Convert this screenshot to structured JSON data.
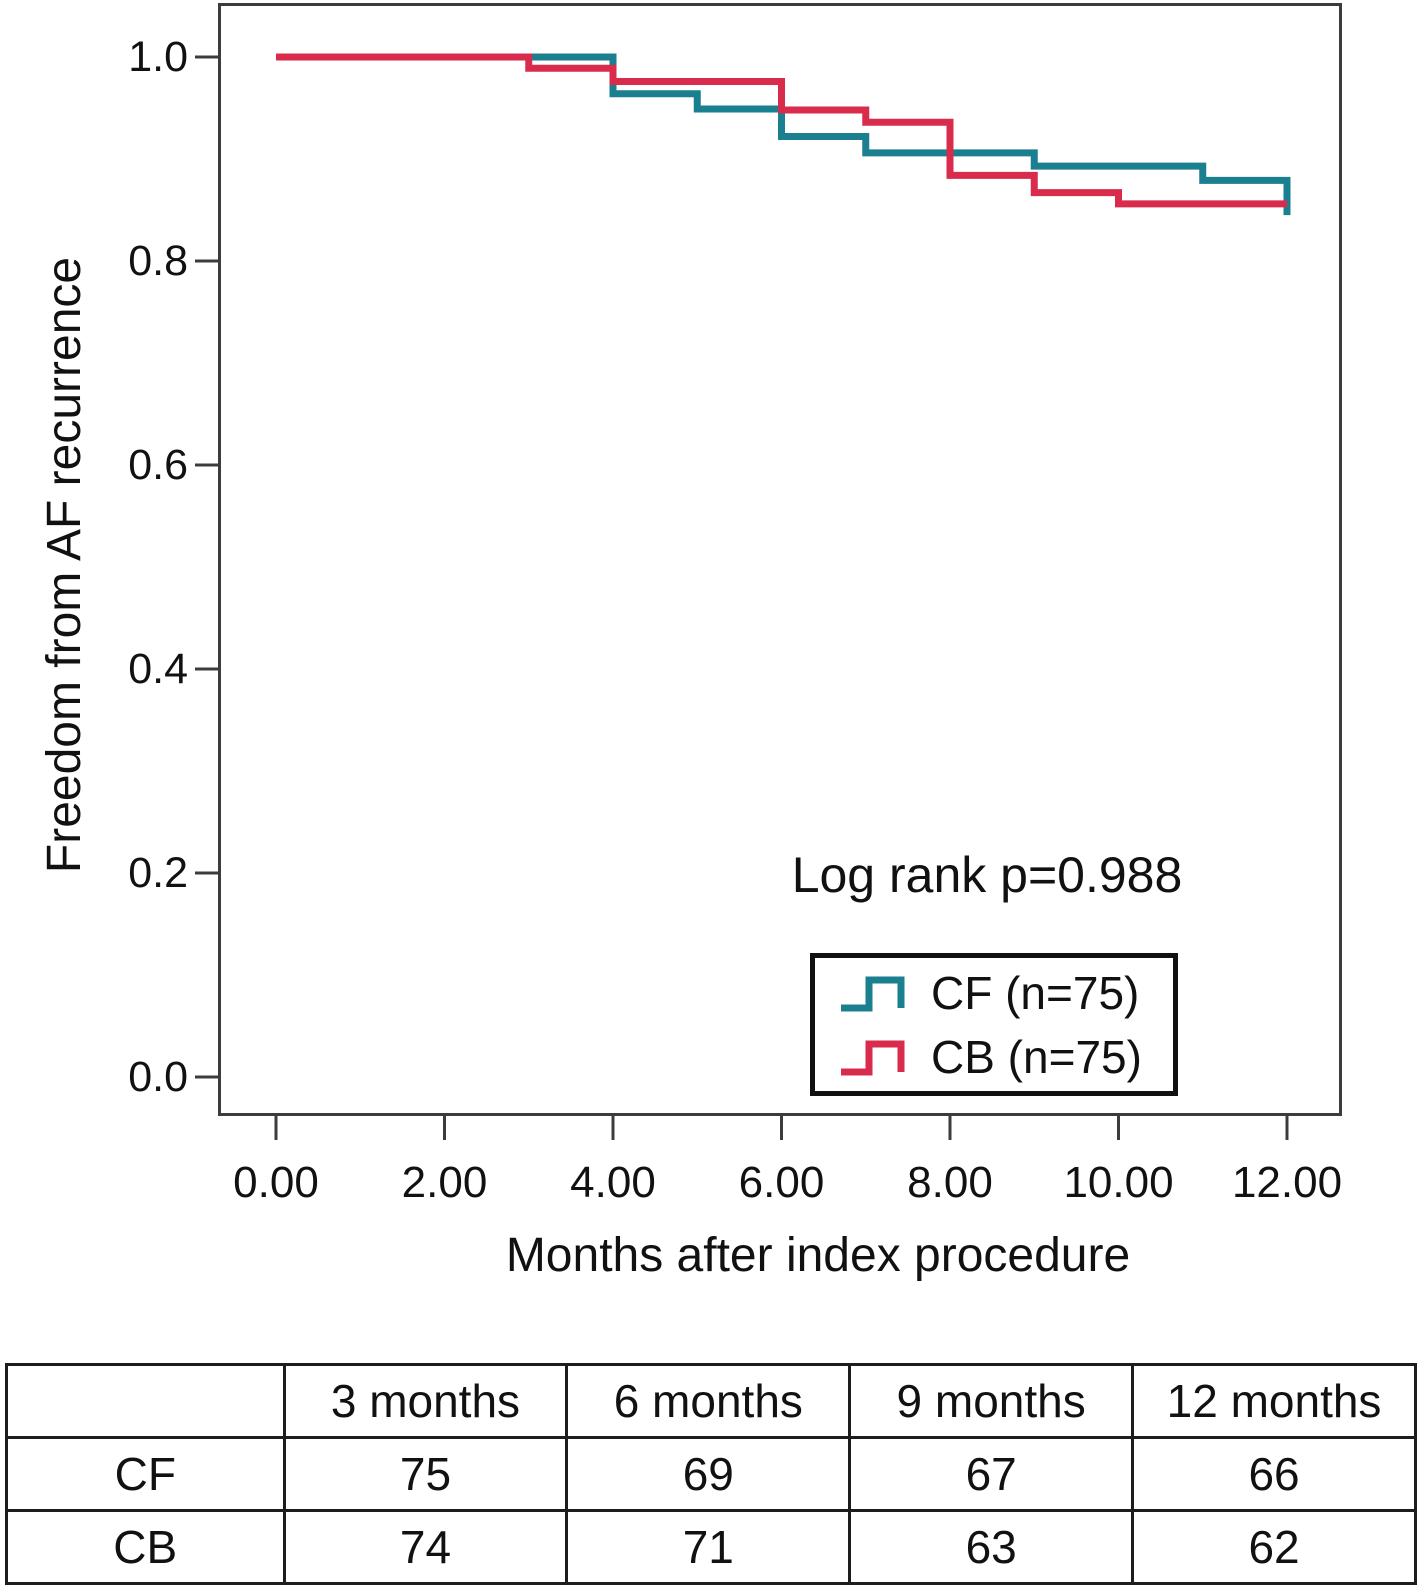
{
  "chart_data": {
    "type": "line",
    "subtype": "kaplan_meier_step",
    "title": "",
    "xlabel": "Months after index procedure",
    "ylabel": "Freedom from AF recurrence",
    "annotation": "Log rank p=0.988",
    "xlim": [
      0,
      12
    ],
    "ylim": [
      0.0,
      1.0
    ],
    "x_ticks": [
      "0.00",
      "2.00",
      "4.00",
      "6.00",
      "8.00",
      "10.00",
      "12.00"
    ],
    "y_ticks": [
      "1.0",
      "0.8",
      "0.6",
      "0.4",
      "0.2",
      "0.0"
    ],
    "grid": false,
    "legend_position": "lower right box",
    "frame_color": "#3C3C3C",
    "series": [
      {
        "name": "CF",
        "legend_label": "CF (n=75)",
        "color": "#1A7F8F",
        "steps": [
          [
            0,
            1.0
          ],
          [
            4,
            0.964
          ],
          [
            5,
            0.949
          ],
          [
            6,
            0.922
          ],
          [
            7,
            0.906
          ],
          [
            9,
            0.893
          ],
          [
            11,
            0.879
          ],
          [
            12,
            0.845
          ]
        ],
        "end_t": 12
      },
      {
        "name": "CB",
        "legend_label": "CB (n=75)",
        "color": "#D92B4C",
        "steps": [
          [
            0,
            1.0
          ],
          [
            3,
            0.989
          ],
          [
            4,
            0.976
          ],
          [
            6,
            0.948
          ],
          [
            7,
            0.936
          ],
          [
            8,
            0.884
          ],
          [
            9,
            0.867
          ],
          [
            10,
            0.856
          ]
        ],
        "end_t": 12
      }
    ]
  },
  "risk_table": {
    "col_headers": [
      "",
      "3 months",
      "6 months",
      "9 months",
      "12 months"
    ],
    "rows": [
      {
        "label": "CF",
        "values": [
          "75",
          "69",
          "67",
          "66"
        ]
      },
      {
        "label": "CB",
        "values": [
          "74",
          "71",
          "63",
          "62"
        ]
      }
    ]
  }
}
